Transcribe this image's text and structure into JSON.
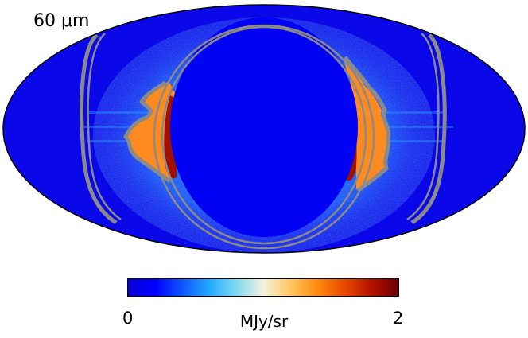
{
  "band_label": "60 μm",
  "colorbar": {
    "min_label": "0",
    "max_label": "2",
    "unit": "MJy/sr",
    "range": [
      0,
      2
    ],
    "colormap": [
      "#0a00d8",
      "#0000ff",
      "#0f55ff",
      "#22aaff",
      "#7fd8f0",
      "#f2f2e0",
      "#ffc860",
      "#ff8a10",
      "#e84a00",
      "#b41200",
      "#6a0000"
    ]
  },
  "map": {
    "projection": "Mollweide",
    "background_color": "#0a08e8",
    "masked_region_color": "#0000f5",
    "contour_color": "#8a8a8a",
    "emission_hot_color": "#a01000",
    "emission_warm_color": "#ff8a20"
  }
}
